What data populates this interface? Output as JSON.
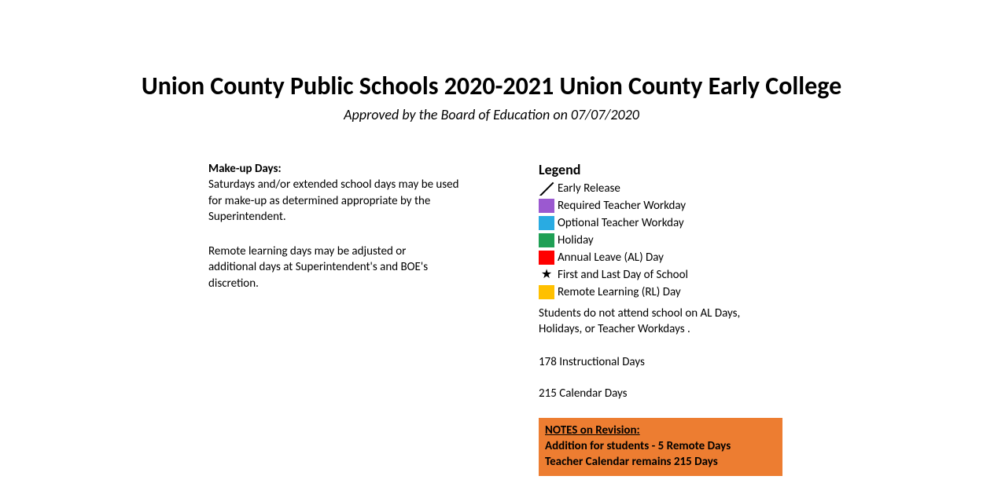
{
  "header": {
    "title": "Union County Public Schools 2020-2021 Union County Early College",
    "subtitle": "Approved by the Board of Education on 07/07/2020"
  },
  "makeup": {
    "heading": "Make-up Days:",
    "body": "Saturdays and/or extended school days may be used for make-up as determined appropriate by the Superintendent.",
    "remote": "Remote learning days may be adjusted or additional days at Superintendent's and BOE's discretion."
  },
  "legend": {
    "heading": "Legend",
    "items": [
      {
        "type": "diag",
        "color": "#ffffff",
        "label": "Early Release"
      },
      {
        "type": "solid",
        "color": "#9b59d0",
        "label": "Required Teacher Workday"
      },
      {
        "type": "solid",
        "color": "#29abe2",
        "label": "Optional Teacher Workday"
      },
      {
        "type": "solid",
        "color": "#1fa055",
        "label": "Holiday"
      },
      {
        "type": "solid",
        "color": "#ff0000",
        "label": "Annual Leave (AL) Day"
      },
      {
        "type": "star",
        "color": "#000000",
        "label": "First and Last Day of School"
      },
      {
        "type": "solid",
        "color": "#ffc000",
        "label": "Remote Learning (RL) Day"
      }
    ],
    "note": "Students do not attend school on AL Days, Holidays, or Teacher Workdays .",
    "stat1": "178 Instructional Days",
    "stat2": "215 Calendar Days"
  },
  "notes": {
    "heading": "NOTES on Revision:",
    "line1": "Addition for students - 5 Remote Days",
    "line2": "Teacher Calendar remains 215 Days",
    "bg_color": "#ed7d31"
  }
}
